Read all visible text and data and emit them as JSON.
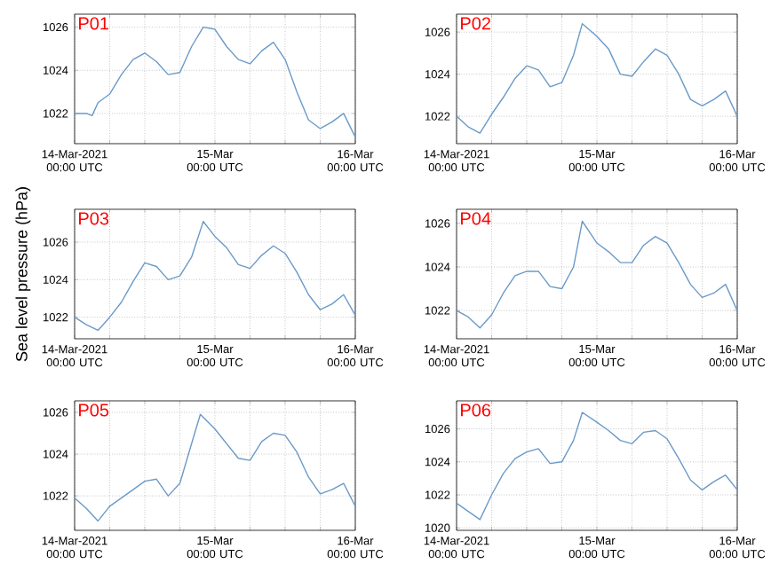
{
  "chart_data": [
    {
      "type": "line",
      "title": "P01",
      "grid": true,
      "xlim": [
        "2021-03-14T00:00",
        "2021-03-16T00:00"
      ],
      "ylim": [
        1020.6,
        1026.6
      ],
      "yticks": [
        1022,
        1024,
        1026
      ],
      "xticks": [
        {
          "value": "2021-03-14T00:00",
          "label": "14-Mar-2021 00:00 UTC"
        },
        {
          "value": "2021-03-14T06:00",
          "label": null
        },
        {
          "value": "2021-03-14T12:00",
          "label": null
        },
        {
          "value": "2021-03-14T18:00",
          "label": null
        },
        {
          "value": "2021-03-15T00:00",
          "label": "15-Mar 00:00 UTC"
        },
        {
          "value": "2021-03-15T06:00",
          "label": null
        },
        {
          "value": "2021-03-15T12:00",
          "label": null
        },
        {
          "value": "2021-03-15T18:00",
          "label": null
        },
        {
          "value": "2021-03-16T00:00",
          "label": "16-Mar 00:00 UTC"
        }
      ],
      "x": [
        "2021-03-14T00:00",
        "2021-03-14T02:00",
        "2021-03-14T03:00",
        "2021-03-14T04:00",
        "2021-03-14T06:00",
        "2021-03-14T08:00",
        "2021-03-14T10:00",
        "2021-03-14T12:00",
        "2021-03-14T14:00",
        "2021-03-14T16:00",
        "2021-03-14T18:00",
        "2021-03-14T20:00",
        "2021-03-14T22:00",
        "2021-03-15T00:00",
        "2021-03-15T02:00",
        "2021-03-15T04:00",
        "2021-03-15T06:00",
        "2021-03-15T08:00",
        "2021-03-15T10:00",
        "2021-03-15T12:00",
        "2021-03-15T14:00",
        "2021-03-15T16:00",
        "2021-03-15T18:00",
        "2021-03-15T20:00",
        "2021-03-15T22:00",
        "2021-03-16T00:00"
      ],
      "color": "#6a9ac8",
      "values": [
        1022.0,
        1022.0,
        1021.9,
        1022.5,
        1022.9,
        1023.8,
        1024.5,
        1024.8,
        1024.4,
        1023.8,
        1023.9,
        1025.1,
        1026.0,
        1025.9,
        1025.1,
        1024.5,
        1024.3,
        1024.9,
        1025.3,
        1024.5,
        1023.0,
        1021.7,
        1021.3,
        1021.6,
        1022.0,
        1020.9
      ]
    },
    {
      "type": "line",
      "title": "P02",
      "grid": true,
      "xlim": [
        "2021-03-14T00:00",
        "2021-03-16T00:00"
      ],
      "ylim": [
        1020.7,
        1026.85
      ],
      "yticks": [
        1022,
        1024,
        1026
      ],
      "xticks": [
        {
          "value": "2021-03-14T00:00",
          "label": "14-Mar-2021 00:00 UTC"
        },
        {
          "value": "2021-03-14T06:00",
          "label": null
        },
        {
          "value": "2021-03-14T12:00",
          "label": null
        },
        {
          "value": "2021-03-14T18:00",
          "label": null
        },
        {
          "value": "2021-03-15T00:00",
          "label": "15-Mar 00:00 UTC"
        },
        {
          "value": "2021-03-15T06:00",
          "label": null
        },
        {
          "value": "2021-03-15T12:00",
          "label": null
        },
        {
          "value": "2021-03-15T18:00",
          "label": null
        },
        {
          "value": "2021-03-16T00:00",
          "label": "16-Mar 00:00 UTC"
        }
      ],
      "x": [
        "2021-03-14T00:00",
        "2021-03-14T02:00",
        "2021-03-14T04:00",
        "2021-03-14T06:00",
        "2021-03-14T08:00",
        "2021-03-14T10:00",
        "2021-03-14T12:00",
        "2021-03-14T14:00",
        "2021-03-14T16:00",
        "2021-03-14T18:00",
        "2021-03-14T20:00",
        "2021-03-14T21:30",
        "2021-03-15T00:00",
        "2021-03-15T02:00",
        "2021-03-15T04:00",
        "2021-03-15T06:00",
        "2021-03-15T08:00",
        "2021-03-15T10:00",
        "2021-03-15T12:00",
        "2021-03-15T14:00",
        "2021-03-15T16:00",
        "2021-03-15T18:00",
        "2021-03-15T20:00",
        "2021-03-15T22:00",
        "2021-03-16T00:00"
      ],
      "color": "#6a9ac8",
      "values": [
        1022.0,
        1021.5,
        1021.2,
        1022.1,
        1022.9,
        1023.8,
        1024.4,
        1024.2,
        1023.4,
        1023.6,
        1024.9,
        1026.4,
        1025.8,
        1025.2,
        1024.0,
        1023.9,
        1024.6,
        1025.2,
        1024.9,
        1024.0,
        1022.8,
        1022.5,
        1022.8,
        1023.2,
        1022.0
      ]
    },
    {
      "type": "line",
      "title": "P03",
      "ylabel": "Sea level pressure (hPa)",
      "grid": true,
      "xlim": [
        "2021-03-14T00:00",
        "2021-03-16T00:00"
      ],
      "ylim": [
        1020.85,
        1027.75
      ],
      "yticks": [
        1022,
        1024,
        1026
      ],
      "xticks": [
        {
          "value": "2021-03-14T00:00",
          "label": "14-Mar-2021 00:00 UTC"
        },
        {
          "value": "2021-03-14T06:00",
          "label": null
        },
        {
          "value": "2021-03-14T12:00",
          "label": null
        },
        {
          "value": "2021-03-14T18:00",
          "label": null
        },
        {
          "value": "2021-03-15T00:00",
          "label": "15-Mar 00:00 UTC"
        },
        {
          "value": "2021-03-15T06:00",
          "label": null
        },
        {
          "value": "2021-03-15T12:00",
          "label": null
        },
        {
          "value": "2021-03-15T18:00",
          "label": null
        },
        {
          "value": "2021-03-16T00:00",
          "label": "16-Mar 00:00 UTC"
        }
      ],
      "x": [
        "2021-03-14T00:00",
        "2021-03-14T02:00",
        "2021-03-14T04:00",
        "2021-03-14T06:00",
        "2021-03-14T08:00",
        "2021-03-14T10:00",
        "2021-03-14T12:00",
        "2021-03-14T14:00",
        "2021-03-14T16:00",
        "2021-03-14T18:00",
        "2021-03-14T20:00",
        "2021-03-14T22:00",
        "2021-03-15T00:00",
        "2021-03-15T02:00",
        "2021-03-15T04:00",
        "2021-03-15T06:00",
        "2021-03-15T08:00",
        "2021-03-15T10:00",
        "2021-03-15T12:00",
        "2021-03-15T14:00",
        "2021-03-15T16:00",
        "2021-03-15T18:00",
        "2021-03-15T20:00",
        "2021-03-15T22:00",
        "2021-03-16T00:00"
      ],
      "color": "#6a9ac8",
      "values": [
        1022.0,
        1021.6,
        1021.3,
        1022.0,
        1022.8,
        1023.9,
        1024.9,
        1024.7,
        1024.0,
        1024.2,
        1025.2,
        1027.1,
        1026.3,
        1025.7,
        1024.8,
        1024.6,
        1025.3,
        1025.8,
        1025.4,
        1024.4,
        1023.2,
        1022.4,
        1022.7,
        1023.2,
        1022.1
      ]
    },
    {
      "type": "line",
      "title": "P04",
      "grid": true,
      "xlim": [
        "2021-03-14T00:00",
        "2021-03-16T00:00"
      ],
      "ylim": [
        1020.7,
        1026.65
      ],
      "yticks": [
        1022,
        1024,
        1026
      ],
      "xticks": [
        {
          "value": "2021-03-14T00:00",
          "label": "14-Mar-2021 00:00 UTC"
        },
        {
          "value": "2021-03-14T06:00",
          "label": null
        },
        {
          "value": "2021-03-14T12:00",
          "label": null
        },
        {
          "value": "2021-03-14T18:00",
          "label": null
        },
        {
          "value": "2021-03-15T00:00",
          "label": "15-Mar 00:00 UTC"
        },
        {
          "value": "2021-03-15T06:00",
          "label": null
        },
        {
          "value": "2021-03-15T12:00",
          "label": null
        },
        {
          "value": "2021-03-15T18:00",
          "label": null
        },
        {
          "value": "2021-03-16T00:00",
          "label": "16-Mar 00:00 UTC"
        }
      ],
      "x": [
        "2021-03-14T00:00",
        "2021-03-14T02:00",
        "2021-03-14T04:00",
        "2021-03-14T06:00",
        "2021-03-14T08:00",
        "2021-03-14T10:00",
        "2021-03-14T12:00",
        "2021-03-14T14:00",
        "2021-03-14T16:00",
        "2021-03-14T18:00",
        "2021-03-14T20:00",
        "2021-03-14T21:30",
        "2021-03-15T00:00",
        "2021-03-15T02:00",
        "2021-03-15T04:00",
        "2021-03-15T06:00",
        "2021-03-15T08:00",
        "2021-03-15T10:00",
        "2021-03-15T12:00",
        "2021-03-15T14:00",
        "2021-03-15T16:00",
        "2021-03-15T18:00",
        "2021-03-15T20:00",
        "2021-03-15T22:00",
        "2021-03-16T00:00"
      ],
      "color": "#6a9ac8",
      "values": [
        1022.0,
        1021.7,
        1021.2,
        1021.8,
        1022.8,
        1023.6,
        1023.8,
        1023.8,
        1023.1,
        1023.0,
        1024.0,
        1026.1,
        1025.1,
        1024.7,
        1024.2,
        1024.2,
        1025.0,
        1025.4,
        1025.1,
        1024.2,
        1023.2,
        1022.6,
        1022.8,
        1023.2,
        1022.0
      ]
    },
    {
      "type": "line",
      "title": "P05",
      "grid": true,
      "xlim": [
        "2021-03-14T00:00",
        "2021-03-16T00:00"
      ],
      "ylim": [
        1020.35,
        1026.55
      ],
      "yticks": [
        1022,
        1024,
        1026
      ],
      "xticks": [
        {
          "value": "2021-03-14T00:00",
          "label": "14-Mar-2021 00:00 UTC"
        },
        {
          "value": "2021-03-14T06:00",
          "label": null
        },
        {
          "value": "2021-03-14T12:00",
          "label": null
        },
        {
          "value": "2021-03-14T18:00",
          "label": null
        },
        {
          "value": "2021-03-15T00:00",
          "label": "15-Mar 00:00 UTC"
        },
        {
          "value": "2021-03-15T06:00",
          "label": null
        },
        {
          "value": "2021-03-15T12:00",
          "label": null
        },
        {
          "value": "2021-03-15T18:00",
          "label": null
        },
        {
          "value": "2021-03-16T00:00",
          "label": "16-Mar 00:00 UTC"
        }
      ],
      "x": [
        "2021-03-14T00:00",
        "2021-03-14T02:00",
        "2021-03-14T04:00",
        "2021-03-14T06:00",
        "2021-03-14T08:00",
        "2021-03-14T10:00",
        "2021-03-14T12:00",
        "2021-03-14T14:00",
        "2021-03-14T16:00",
        "2021-03-14T18:00",
        "2021-03-14T20:00",
        "2021-03-14T21:30",
        "2021-03-15T00:00",
        "2021-03-15T02:00",
        "2021-03-15T04:00",
        "2021-03-15T06:00",
        "2021-03-15T08:00",
        "2021-03-15T10:00",
        "2021-03-15T12:00",
        "2021-03-15T14:00",
        "2021-03-15T16:00",
        "2021-03-15T18:00",
        "2021-03-15T20:00",
        "2021-03-15T22:00",
        "2021-03-16T00:00"
      ],
      "color": "#6a9ac8",
      "values": [
        1021.9,
        1021.4,
        1020.8,
        1021.5,
        1021.9,
        1022.3,
        1022.7,
        1022.8,
        1022.0,
        1022.6,
        1024.5,
        1025.9,
        1025.2,
        1024.5,
        1023.8,
        1023.7,
        1024.6,
        1025.0,
        1024.9,
        1024.1,
        1022.9,
        1022.1,
        1022.3,
        1022.6,
        1021.5
      ]
    },
    {
      "type": "line",
      "title": "P06",
      "grid": true,
      "xlim": [
        "2021-03-14T00:00",
        "2021-03-16T00:00"
      ],
      "ylim": [
        1019.85,
        1027.7
      ],
      "yticks": [
        1020,
        1022,
        1024,
        1026
      ],
      "xticks": [
        {
          "value": "2021-03-14T00:00",
          "label": "14-Mar-2021 00:00 UTC"
        },
        {
          "value": "2021-03-14T06:00",
          "label": null
        },
        {
          "value": "2021-03-14T12:00",
          "label": null
        },
        {
          "value": "2021-03-14T18:00",
          "label": null
        },
        {
          "value": "2021-03-15T00:00",
          "label": "15-Mar 00:00 UTC"
        },
        {
          "value": "2021-03-15T06:00",
          "label": null
        },
        {
          "value": "2021-03-15T12:00",
          "label": null
        },
        {
          "value": "2021-03-15T18:00",
          "label": null
        },
        {
          "value": "2021-03-16T00:00",
          "label": "16-Mar 00:00 UTC"
        }
      ],
      "x": [
        "2021-03-14T00:00",
        "2021-03-14T02:00",
        "2021-03-14T04:00",
        "2021-03-14T06:00",
        "2021-03-14T08:00",
        "2021-03-14T10:00",
        "2021-03-14T12:00",
        "2021-03-14T14:00",
        "2021-03-14T16:00",
        "2021-03-14T18:00",
        "2021-03-14T20:00",
        "2021-03-14T21:30",
        "2021-03-15T00:00",
        "2021-03-15T02:00",
        "2021-03-15T04:00",
        "2021-03-15T06:00",
        "2021-03-15T08:00",
        "2021-03-15T10:00",
        "2021-03-15T12:00",
        "2021-03-15T14:00",
        "2021-03-15T16:00",
        "2021-03-15T18:00",
        "2021-03-15T20:00",
        "2021-03-15T22:00",
        "2021-03-16T00:00"
      ],
      "color": "#6a9ac8",
      "values": [
        1021.5,
        1021.0,
        1020.5,
        1022.0,
        1023.3,
        1024.2,
        1024.6,
        1024.8,
        1023.9,
        1024.0,
        1025.3,
        1027.0,
        1026.4,
        1025.9,
        1025.3,
        1025.1,
        1025.8,
        1025.9,
        1025.4,
        1024.2,
        1022.9,
        1022.3,
        1022.8,
        1023.2,
        1022.3
      ]
    }
  ]
}
